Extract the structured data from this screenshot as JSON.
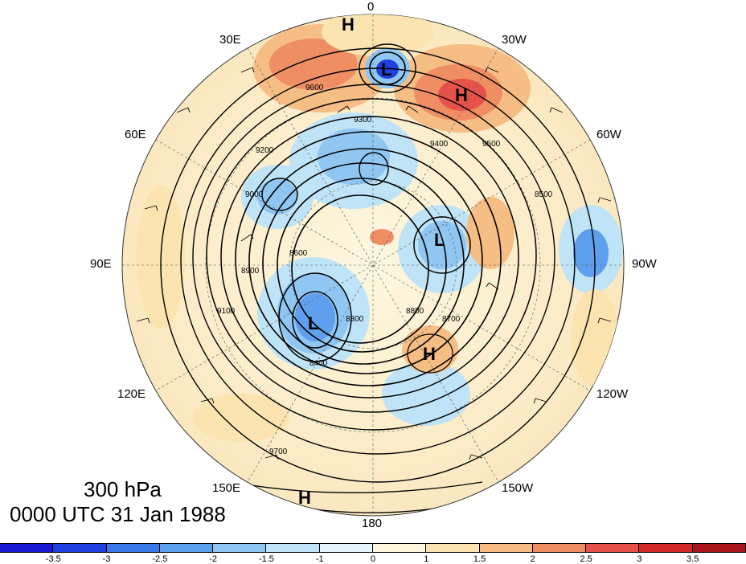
{
  "map": {
    "level_label": "300 hPa",
    "time_label": "0000 UTC 31 Jan 1988",
    "longitude_labels": {
      "top": "0",
      "top_right": "30W",
      "right_upper": "60W",
      "right": "90W",
      "right_lower": "120W",
      "bottom_right": "150W",
      "bottom": "180",
      "bottom_left": "150E",
      "left_lower": "120E",
      "left": "90E",
      "left_upper": "60E",
      "top_left": "30E"
    },
    "pressure_centers": [
      {
        "type": "H",
        "label": "H"
      },
      {
        "type": "L",
        "label": "L"
      },
      {
        "type": "H",
        "label": "H"
      },
      {
        "type": "L",
        "label": "L"
      },
      {
        "type": "L",
        "label": "L"
      },
      {
        "type": "H",
        "label": "H"
      },
      {
        "type": "H",
        "label": "H"
      }
    ],
    "contour_labels": [
      "9600",
      "9500",
      "9400",
      "9300",
      "9200",
      "9100",
      "9000",
      "8900",
      "8800",
      "8700",
      "8600",
      "8500",
      "8400",
      "9700",
      "8300"
    ],
    "colorbar": {
      "ticks": [
        "-3.5",
        "-3",
        "-2.5",
        "-2",
        "-1.5",
        "-1",
        "0",
        "1",
        "1.5",
        "2",
        "2.5",
        "3",
        "3.5"
      ],
      "colors": [
        "#1a1ad1",
        "#1f3fe0",
        "#3a78e8",
        "#5fa0ee",
        "#8fc6f2",
        "#bfe3f7",
        "#e6f4fb",
        "#fdf7e0",
        "#fbe4b0",
        "#f6bd84",
        "#ef8e62",
        "#e5524a",
        "#d32a2a",
        "#a8151d"
      ]
    }
  }
}
